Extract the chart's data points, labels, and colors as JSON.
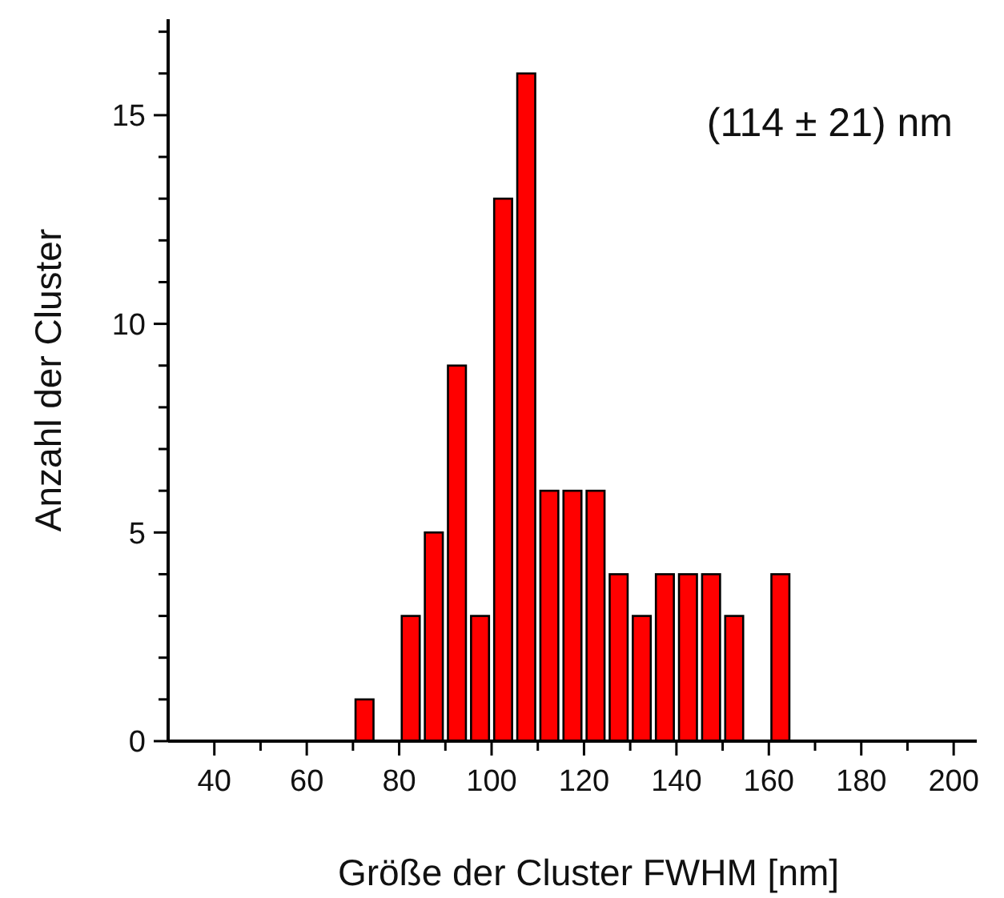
{
  "chart_data": {
    "type": "histogram",
    "xlabel": "Größe der Cluster FWHM [nm]",
    "ylabel": "Anzahl der Cluster",
    "annotations": [
      "(114 ± 21) nm"
    ],
    "bins": [
      70,
      75,
      80,
      85,
      90,
      95,
      100,
      105,
      110,
      115,
      120,
      125,
      130,
      135,
      140,
      145,
      150,
      155,
      160,
      165
    ],
    "values": [
      1,
      0,
      3,
      5,
      9,
      3,
      13,
      16,
      6,
      6,
      6,
      4,
      3,
      4,
      4,
      4,
      3,
      0,
      4
    ],
    "color": "#ff0000",
    "xlim": [
      30,
      205
    ],
    "xticks": [
      40,
      {
        "value": 50,
        "label": null
      },
      60,
      {
        "value": 70,
        "label": null
      },
      80,
      {
        "value": 90,
        "label": null
      },
      100,
      {
        "value": 110,
        "label": null
      },
      120,
      {
        "value": 130,
        "label": null
      },
      140,
      {
        "value": 150,
        "label": null
      },
      160,
      {
        "value": 170,
        "label": null
      },
      180,
      {
        "value": 190,
        "label": null
      },
      200
    ],
    "ylim": [
      0,
      17.3
    ],
    "yticks": [
      0,
      {
        "value": 1,
        "label": null
      },
      {
        "value": 2,
        "label": null
      },
      {
        "value": 3,
        "label": null
      },
      {
        "value": 4,
        "label": null
      },
      5,
      {
        "value": 6,
        "label": null
      },
      {
        "value": 7,
        "label": null
      },
      {
        "value": 8,
        "label": null
      },
      {
        "value": 9,
        "label": null
      },
      10,
      {
        "value": 11,
        "label": null
      },
      {
        "value": 12,
        "label": null
      },
      {
        "value": 13,
        "label": null
      },
      {
        "value": 14,
        "label": null
      },
      15,
      {
        "value": 16,
        "label": null
      },
      {
        "value": 17,
        "label": null
      }
    ]
  }
}
